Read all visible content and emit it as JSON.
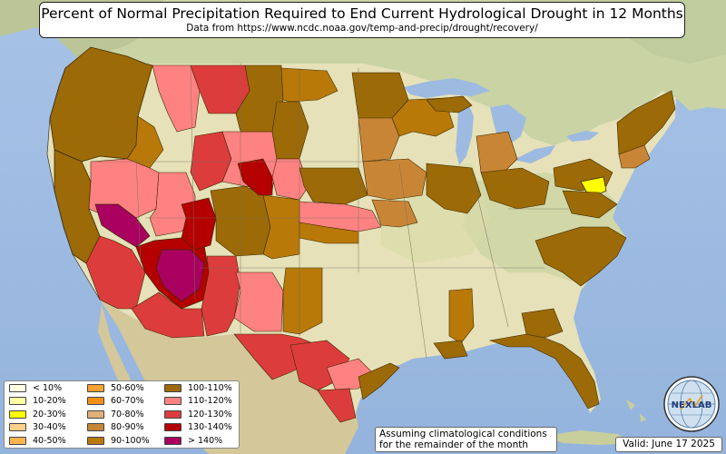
{
  "title": "Percent of Normal Precipitation Required to End Current Hydrological Drought in 12 Months",
  "subtitle": "Data from https://www.ncdc.noaa.gov/temp-and-precip/drought/recovery/",
  "legend": [
    {
      "label": "< 10%",
      "color": "#fffde0"
    },
    {
      "label": "10-20%",
      "color": "#ffffa8"
    },
    {
      "label": "20-30%",
      "color": "#ffff00"
    },
    {
      "label": "30-40%",
      "color": "#ffd08a"
    },
    {
      "label": "40-50%",
      "color": "#ffb450"
    },
    {
      "label": "50-60%",
      "color": "#f8a030"
    },
    {
      "label": "60-70%",
      "color": "#f59015"
    },
    {
      "label": "70-80%",
      "color": "#e0b07a"
    },
    {
      "label": "80-90%",
      "color": "#c98536"
    },
    {
      "label": "90-100%",
      "color": "#b87908"
    },
    {
      "label": "100-110%",
      "color": "#9c6a06"
    },
    {
      "label": "110-120%",
      "color": "#ff8282"
    },
    {
      "label": "120-130%",
      "color": "#dc3c3c"
    },
    {
      "label": "130-140%",
      "color": "#b40000"
    },
    {
      "label": "> 140%",
      "color": "#aa0060"
    }
  ],
  "note": {
    "line1": "Assuming climatological conditions",
    "line2": "for the remainder of the month"
  },
  "valid": "Valid: June 17 2025",
  "logo": {
    "text": "NEXLAB",
    "icon": "nexlab-globe-logo"
  }
}
